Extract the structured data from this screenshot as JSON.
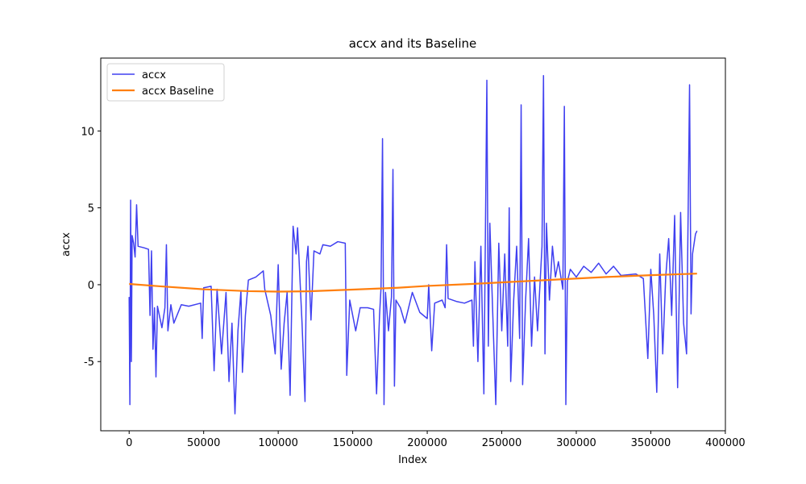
{
  "chart_data": {
    "type": "line",
    "title": "accx and its Baseline",
    "xlabel": "Index",
    "ylabel": "accx",
    "xlim": [
      -19050,
      400050
    ],
    "ylim": [
      -9.5,
      14.74
    ],
    "xticks": [
      0,
      50000,
      100000,
      150000,
      200000,
      250000,
      300000,
      350000,
      400000
    ],
    "yticks": [
      -5,
      0,
      5,
      10
    ],
    "legend": "upper left",
    "series": [
      {
        "name": "accx",
        "color": "#4040f0",
        "width": 1.5,
        "x": [
          0,
          500,
          1000,
          1500,
          2000,
          3000,
          4000,
          5000,
          6000,
          10000,
          13000,
          14000,
          15000,
          16000,
          17000,
          18000,
          19000,
          22000,
          24000,
          25000,
          26000,
          28000,
          30000,
          35000,
          40000,
          48000,
          49000,
          50000,
          55000,
          57000,
          59000,
          62000,
          65000,
          67000,
          69000,
          71000,
          73000,
          75000,
          76000,
          78000,
          80000,
          85000,
          90000,
          91000,
          95000,
          98000,
          100000,
          102000,
          104000,
          106000,
          108000,
          110000,
          112000,
          113000,
          116000,
          118000,
          119000,
          120000,
          122000,
          124000,
          128000,
          130000,
          135000,
          140000,
          145000,
          146000,
          148000,
          152000,
          155000,
          160000,
          164000,
          166000,
          168000,
          169000,
          170000,
          171000,
          172000,
          174000,
          176000,
          177000,
          178000,
          179000,
          182000,
          185000,
          190000,
          195000,
          200000,
          201000,
          203000,
          205000,
          210000,
          212000,
          213000,
          214000,
          220000,
          225000,
          230000,
          231000,
          232000,
          234000,
          236000,
          238000,
          240000,
          241000,
          242000,
          244000,
          246000,
          248000,
          250000,
          252000,
          254000,
          255000,
          256000,
          258000,
          260000,
          262000,
          263000,
          264000,
          266000,
          268000,
          270000,
          272000,
          274000,
          277000,
          278000,
          279000,
          280000,
          282000,
          284000,
          286000,
          288000,
          291000,
          292000,
          293000,
          294000,
          296000,
          300000,
          305000,
          310000,
          315000,
          320000,
          325000,
          330000,
          340000,
          345000,
          348000,
          350000,
          352000,
          354000,
          356000,
          358000,
          360000,
          362000,
          364000,
          366000,
          368000,
          370000,
          372000,
          374000,
          376000,
          377000,
          378000,
          380000,
          381000
        ],
        "values": [
          -0.8,
          -7.8,
          5.5,
          -5,
          3.2,
          2.7,
          1.8,
          5.2,
          2.5,
          2.4,
          2.3,
          -2,
          2.2,
          -4.2,
          -1.5,
          -6,
          -1.4,
          -2.8,
          -1.5,
          2.6,
          -3,
          -1.3,
          -2.5,
          -1.3,
          -1.4,
          -1.2,
          -3.5,
          -0.2,
          -0.1,
          -5.6,
          -0.3,
          -4.5,
          -0.5,
          -6.3,
          -2.5,
          -8.4,
          -3,
          -0.4,
          -5.7,
          -2,
          0.3,
          0.5,
          0.9,
          -0.3,
          -2,
          -4.5,
          1.3,
          -5.5,
          -2.5,
          -0.5,
          -7.2,
          3.8,
          2,
          3.7,
          -2.5,
          -7.6,
          1.5,
          2.5,
          -2.3,
          2.2,
          2,
          2.6,
          2.5,
          2.8,
          2.7,
          -5.9,
          -1,
          -3,
          -1.5,
          -1.5,
          -1.6,
          -7.1,
          -2,
          -0.2,
          9.5,
          -7.8,
          -0.5,
          -3,
          -0.8,
          7.5,
          -6.6,
          -1,
          -1.5,
          -2.5,
          -0.5,
          -1.8,
          -2.2,
          0,
          -4.3,
          -1.2,
          -1,
          -1.5,
          2.6,
          -0.9,
          -1.1,
          -1.2,
          -1,
          -4,
          1.5,
          -5,
          2.5,
          -7.1,
          13.3,
          -4,
          4,
          -2,
          -7.8,
          2.7,
          -3,
          2,
          -4,
          5,
          -6.3,
          -1,
          2.5,
          -3.5,
          11.7,
          -6.5,
          -1,
          3,
          -4,
          0.5,
          -3,
          2.5,
          13.6,
          -4.5,
          4,
          -1,
          2.5,
          0.5,
          1.5,
          -0.3,
          11.6,
          -7.8,
          0.2,
          1,
          0.5,
          1.2,
          0.8,
          1.4,
          0.7,
          1.2,
          0.6,
          0.7,
          0.4,
          -4.8,
          1,
          -2,
          -7,
          2,
          -4.5,
          0.5,
          3,
          -2,
          4.5,
          -6.7,
          4.7,
          -2.5,
          -4.5,
          13,
          -1.9,
          2,
          3.3,
          3.5
        ]
      },
      {
        "name": "accx Baseline",
        "color": "#ff7f0e",
        "width": 2.2,
        "x": [
          0,
          20000,
          50000,
          80000,
          100000,
          120000,
          150000,
          180000,
          200000,
          230000,
          260000,
          290000,
          320000,
          350000,
          381000
        ],
        "values": [
          0.05,
          -0.1,
          -0.3,
          -0.42,
          -0.45,
          -0.43,
          -0.32,
          -0.2,
          -0.08,
          0.05,
          0.2,
          0.35,
          0.5,
          0.62,
          0.72
        ]
      }
    ]
  }
}
